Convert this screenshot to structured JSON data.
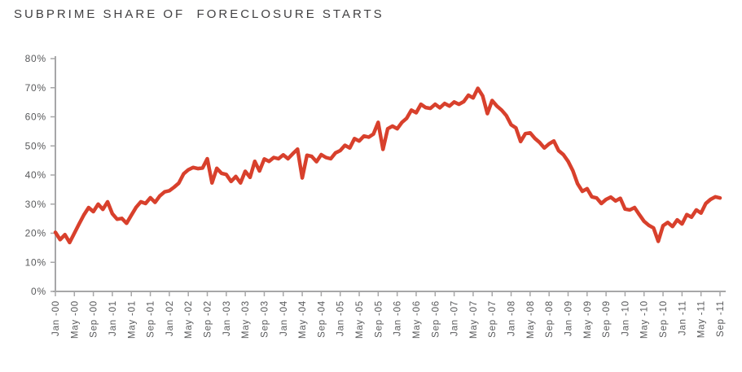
{
  "title": "SUBPRIME SHARE OF  FORECLOSURE STARTS",
  "colors": {
    "line": "#d8402c",
    "axis": "#a7a7a8",
    "tick_text": "#58595b",
    "title_text": "#414042",
    "background": "#ffffff"
  },
  "chart_data": {
    "type": "line",
    "title": "SUBPRIME SHARE OF FORECLOSURE STARTS",
    "xlabel": "",
    "ylabel": "",
    "ylim": [
      0,
      80
    ],
    "grid": false,
    "legend": "none",
    "x_frequency": "monthly",
    "x_start": "Jan 2000",
    "x_end": "Sep 2011",
    "x_ticks_every_n_months": 4,
    "x_tick_labels": [
      "Jan -00",
      "May -00",
      "Sep -00",
      "Jan -01",
      "May -01",
      "Sep -01",
      "Jan -02",
      "May -02",
      "Sep -02",
      "Jan -03",
      "May -03",
      "Sep -03",
      "Jan -04",
      "May -04",
      "Sep -04",
      "Jan -05",
      "May -05",
      "Sep -05",
      "Jan -06",
      "May -06",
      "Sep -06",
      "Jan -07",
      "May -07",
      "Sep -07",
      "Jan -08",
      "May -08",
      "Sep -08",
      "Jan -09",
      "May -09",
      "Sep -09",
      "Jan -10",
      "May -10",
      "Sep -10",
      "Jan -11",
      "May -11",
      "Sep -11"
    ],
    "y_tick_values": [
      0,
      10,
      20,
      30,
      40,
      50,
      60,
      70,
      80
    ],
    "y_tick_labels": [
      "0%",
      "10%",
      "20%",
      "30%",
      "40%",
      "50%",
      "60%",
      "70%",
      "80%"
    ],
    "series": [
      {
        "name": "Subprime share of foreclosure starts (%)",
        "color": "#d8402c",
        "values": [
          20.3,
          17.8,
          19.5,
          16.8,
          20.0,
          23.2,
          26.3,
          28.8,
          27.4,
          30.0,
          28.2,
          30.8,
          26.7,
          24.8,
          25.1,
          23.4,
          26.2,
          28.9,
          30.8,
          30.2,
          32.2,
          30.6,
          32.8,
          34.2,
          34.6,
          35.8,
          37.2,
          40.4,
          41.8,
          42.6,
          42.2,
          42.4,
          45.6,
          37.3,
          42.3,
          40.6,
          40.2,
          37.8,
          39.5,
          37.3,
          41.3,
          39.2,
          44.7,
          41.4,
          45.5,
          44.7,
          46.0,
          45.6,
          46.9,
          45.6,
          47.3,
          48.9,
          39.0,
          46.8,
          46.4,
          44.6,
          47.0,
          46.0,
          45.6,
          47.6,
          48.4,
          50.2,
          49.3,
          52.5,
          51.7,
          53.4,
          53.0,
          54.1,
          58.1,
          48.8,
          55.9,
          56.8,
          55.9,
          58.1,
          59.5,
          62.3,
          61.4,
          64.3,
          63.2,
          62.9,
          64.3,
          63.1,
          64.6,
          63.7,
          65.1,
          64.3,
          65.2,
          67.4,
          66.5,
          69.8,
          67.2,
          61.1,
          65.6,
          63.7,
          62.3,
          60.4,
          57.3,
          56.2,
          51.5,
          54.2,
          54.5,
          52.6,
          51.2,
          49.3,
          50.7,
          51.7,
          48.4,
          47.0,
          44.7,
          41.5,
          37.0,
          34.4,
          35.3,
          32.5,
          32.1,
          30.2,
          31.6,
          32.4,
          31.1,
          32.0,
          28.3,
          28.0,
          28.8,
          26.4,
          24.1,
          22.7,
          21.8,
          17.2,
          22.6,
          23.7,
          22.3,
          24.6,
          23.2,
          26.4,
          25.5,
          28.0,
          26.9,
          30.2,
          31.6,
          32.5,
          32.1
        ]
      }
    ]
  }
}
